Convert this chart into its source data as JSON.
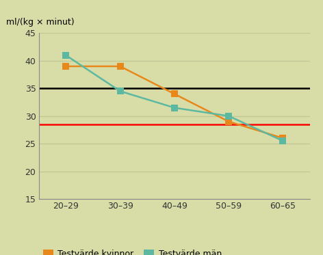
{
  "x_labels": [
    "20–29",
    "30–39",
    "40–49",
    "50–59",
    "60–65"
  ],
  "x_positions": [
    0,
    1,
    2,
    3,
    4
  ],
  "kvinnor_values": [
    39.0,
    39.0,
    34.0,
    29.0,
    26.0
  ],
  "man_values": [
    41.0,
    34.5,
    31.5,
    30.0,
    25.5
  ],
  "kvinnor_color": "#E8881A",
  "man_color": "#5CB8A0",
  "black_line_y": 35,
  "red_line_y": 28.5,
  "ylim": [
    15,
    45
  ],
  "yticks": [
    15,
    20,
    25,
    30,
    35,
    40,
    45
  ],
  "fig_bg_color": "#D8DDA8",
  "plot_bg_color": "#D8DDA8",
  "ylabel": "ml/(kg × minut)",
  "legend_kvinnor": "Testvärde kvinnor",
  "legend_man": "Testvärde män",
  "marker_size": 7,
  "linewidth": 1.8,
  "grid_color": "#C0C896",
  "border_color": "#888888"
}
